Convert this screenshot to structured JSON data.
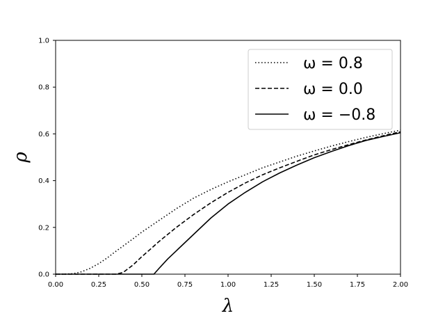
{
  "chart_data": {
    "type": "line",
    "xlabel": "λ",
    "ylabel": "ρ",
    "xlim": [
      0,
      2
    ],
    "ylim": [
      0,
      1
    ],
    "xticks": [
      "0.00",
      "0.25",
      "0.50",
      "0.75",
      "1.00",
      "1.25",
      "1.50",
      "1.75",
      "2.00"
    ],
    "yticks": [
      "0.0",
      "0.2",
      "0.4",
      "0.6",
      "0.8",
      "1.0"
    ],
    "grid": false,
    "legend": "top-right",
    "series": [
      {
        "name": "ω = 0.8",
        "style": "dotted",
        "color": "#000000",
        "x": [
          0,
          0.05,
          0.1,
          0.15,
          0.2,
          0.25,
          0.3,
          0.35,
          0.4,
          0.45,
          0.5,
          0.6,
          0.7,
          0.8,
          0.9,
          1.0,
          1.1,
          1.2,
          1.3,
          1.4,
          1.5,
          1.6,
          1.7,
          1.8,
          1.9,
          2.0
        ],
        "y": [
          0,
          0.0,
          0.002,
          0.01,
          0.025,
          0.045,
          0.07,
          0.098,
          0.125,
          0.152,
          0.18,
          0.23,
          0.28,
          0.325,
          0.362,
          0.395,
          0.425,
          0.455,
          0.48,
          0.505,
          0.527,
          0.548,
          0.567,
          0.585,
          0.601,
          0.616
        ]
      },
      {
        "name": "ω = 0.0",
        "style": "dashed",
        "color": "#000000",
        "x": [
          0,
          0.1,
          0.2,
          0.3,
          0.35,
          0.38,
          0.4,
          0.45,
          0.5,
          0.55,
          0.6,
          0.7,
          0.8,
          0.9,
          1.0,
          1.1,
          1.2,
          1.3,
          1.4,
          1.5,
          1.6,
          1.7,
          1.8,
          1.9,
          2.0
        ],
        "y": [
          0,
          0,
          0,
          0,
          0.0,
          0.005,
          0.012,
          0.04,
          0.075,
          0.107,
          0.14,
          0.2,
          0.255,
          0.305,
          0.35,
          0.39,
          0.425,
          0.455,
          0.483,
          0.51,
          0.533,
          0.554,
          0.574,
          0.592,
          0.609
        ]
      },
      {
        "name": "ω = −0.8",
        "style": "solid",
        "color": "#000000",
        "x": [
          0,
          0.1,
          0.2,
          0.3,
          0.4,
          0.5,
          0.57,
          0.6,
          0.65,
          0.7,
          0.75,
          0.8,
          0.9,
          1.0,
          1.1,
          1.2,
          1.3,
          1.4,
          1.5,
          1.6,
          1.7,
          1.8,
          1.9,
          2.0
        ],
        "y": [
          0,
          0,
          0,
          0,
          0,
          0,
          0,
          0.025,
          0.065,
          0.1,
          0.135,
          0.17,
          0.24,
          0.3,
          0.35,
          0.395,
          0.433,
          0.467,
          0.498,
          0.525,
          0.55,
          0.572,
          0.589,
          0.605
        ]
      }
    ]
  }
}
